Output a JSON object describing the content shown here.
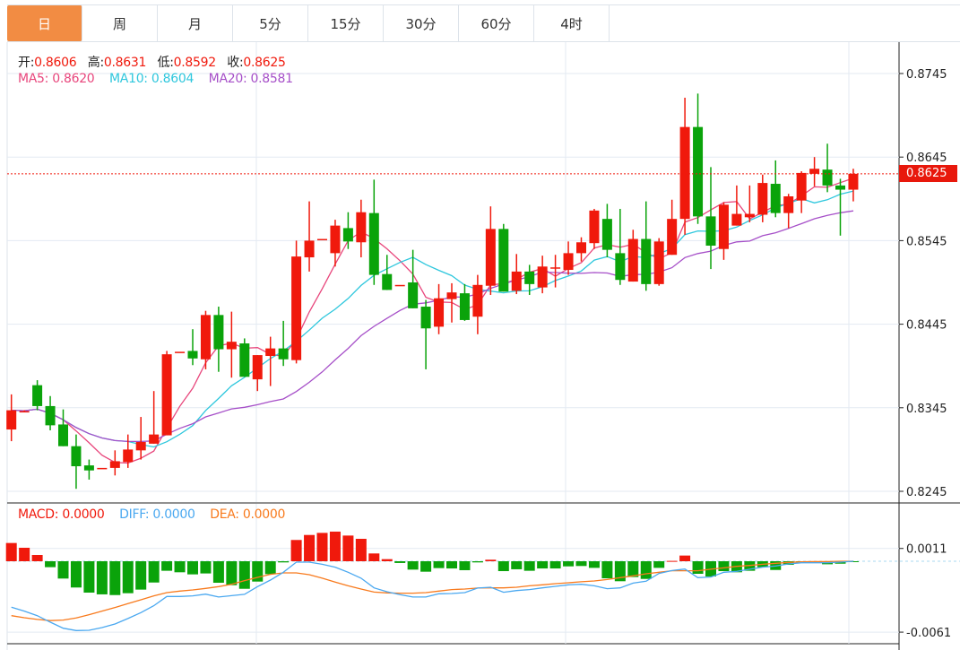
{
  "tabs": [
    {
      "label": "日",
      "active": true
    },
    {
      "label": "周"
    },
    {
      "label": "月"
    },
    {
      "label": "5分"
    },
    {
      "label": "15分"
    },
    {
      "label": "30分"
    },
    {
      "label": "60分"
    },
    {
      "label": "4时"
    }
  ],
  "ohlc_legend": {
    "open_label": "开:",
    "open": "0.8606",
    "high_label": "高:",
    "high": "0.8631",
    "low_label": "低:",
    "low": "0.8592",
    "close_label": "收:",
    "close": "0.8625"
  },
  "ma_legend": {
    "ma5": "MA5: 0.8620",
    "ma10": "MA10: 0.8604",
    "ma20": "MA20: 0.8581"
  },
  "macd_legend": {
    "macd": "MACD: 0.0000",
    "diff": "DIFF: 0.0000",
    "dea": "DEA: 0.0000"
  },
  "current_price": "0.8625",
  "colors": {
    "up": "#f0190c",
    "down": "#0aa30a",
    "ma5": "#e8467c",
    "ma10": "#2ec7dd",
    "ma20": "#a64fc8",
    "diff": "#4aa8f0",
    "dea": "#f87a1d",
    "accent": "#f28c43"
  },
  "chart_data": [
    {
      "type": "candlestick",
      "title": "",
      "y_ticks": [
        "0.8745",
        "0.8645",
        "0.8545",
        "0.8445",
        "0.8345",
        "0.8245"
      ],
      "ylim": [
        0.8245,
        0.8745
      ],
      "ohlc": [
        [
          0.8319,
          0.8361,
          0.8305,
          0.8342
        ],
        [
          0.8341,
          0.8342,
          0.834,
          0.8341
        ],
        [
          0.8372,
          0.8378,
          0.8342,
          0.8347
        ],
        [
          0.8347,
          0.8359,
          0.8318,
          0.8324
        ],
        [
          0.8325,
          0.8343,
          0.8299,
          0.8299
        ],
        [
          0.8299,
          0.8313,
          0.8248,
          0.8275
        ],
        [
          0.8276,
          0.8283,
          0.8259,
          0.827
        ],
        [
          0.8273,
          0.8273,
          0.8273,
          0.8273
        ],
        [
          0.8273,
          0.8294,
          0.8264,
          0.8281
        ],
        [
          0.828,
          0.8313,
          0.8273,
          0.8295
        ],
        [
          0.8294,
          0.8334,
          0.8283,
          0.8304
        ],
        [
          0.8302,
          0.8365,
          0.8302,
          0.8313
        ],
        [
          0.8312,
          0.8413,
          0.8312,
          0.8409
        ],
        [
          0.8412,
          0.8412,
          0.8412,
          0.8412
        ],
        [
          0.8413,
          0.8439,
          0.8396,
          0.8404
        ],
        [
          0.8403,
          0.8461,
          0.8391,
          0.8456
        ],
        [
          0.8456,
          0.8466,
          0.8388,
          0.8415
        ],
        [
          0.8415,
          0.846,
          0.8381,
          0.8424
        ],
        [
          0.8422,
          0.8428,
          0.8382,
          0.8382
        ],
        [
          0.8379,
          0.8408,
          0.8365,
          0.8408
        ],
        [
          0.8407,
          0.843,
          0.8371,
          0.8416
        ],
        [
          0.8416,
          0.8449,
          0.8395,
          0.8403
        ],
        [
          0.8402,
          0.8545,
          0.8398,
          0.8526
        ],
        [
          0.8525,
          0.8592,
          0.8508,
          0.8545
        ],
        [
          0.8547,
          0.8547,
          0.8547,
          0.8547
        ],
        [
          0.853,
          0.857,
          0.8514,
          0.8563
        ],
        [
          0.856,
          0.8579,
          0.8535,
          0.8544
        ],
        [
          0.8543,
          0.8594,
          0.8525,
          0.8579
        ],
        [
          0.8578,
          0.8618,
          0.8492,
          0.8504
        ],
        [
          0.8505,
          0.8528,
          0.8486,
          0.8486
        ],
        [
          0.8492,
          0.8492,
          0.8492,
          0.8492
        ],
        [
          0.8495,
          0.8534,
          0.8464,
          0.8464
        ],
        [
          0.8466,
          0.8474,
          0.8391,
          0.844
        ],
        [
          0.8442,
          0.8493,
          0.8433,
          0.8476
        ],
        [
          0.8475,
          0.8494,
          0.8447,
          0.8483
        ],
        [
          0.8482,
          0.8493,
          0.8449,
          0.845
        ],
        [
          0.8454,
          0.8504,
          0.8433,
          0.8492
        ],
        [
          0.8491,
          0.8586,
          0.848,
          0.8559
        ],
        [
          0.8559,
          0.8565,
          0.8484,
          0.8484
        ],
        [
          0.8485,
          0.8529,
          0.8481,
          0.8508
        ],
        [
          0.8508,
          0.8516,
          0.848,
          0.8493
        ],
        [
          0.8489,
          0.8527,
          0.8482,
          0.8514
        ],
        [
          0.8513,
          0.8528,
          0.8489,
          0.8513
        ],
        [
          0.851,
          0.8544,
          0.8504,
          0.853
        ],
        [
          0.853,
          0.8549,
          0.852,
          0.8543
        ],
        [
          0.8542,
          0.8583,
          0.8535,
          0.8581
        ],
        [
          0.8571,
          0.8589,
          0.8525,
          0.8534
        ],
        [
          0.853,
          0.8583,
          0.8492,
          0.8498
        ],
        [
          0.8496,
          0.8558,
          0.8496,
          0.8547
        ],
        [
          0.8547,
          0.8592,
          0.8485,
          0.8493
        ],
        [
          0.8493,
          0.8548,
          0.8491,
          0.8544
        ],
        [
          0.8528,
          0.8594,
          0.8528,
          0.8571
        ],
        [
          0.8571,
          0.8716,
          0.8552,
          0.8681
        ],
        [
          0.8681,
          0.8721,
          0.8565,
          0.8574
        ],
        [
          0.8574,
          0.8633,
          0.8511,
          0.8539
        ],
        [
          0.8535,
          0.8591,
          0.8522,
          0.8588
        ],
        [
          0.8563,
          0.8611,
          0.8563,
          0.8577
        ],
        [
          0.8573,
          0.8611,
          0.8567,
          0.8577
        ],
        [
          0.8576,
          0.8624,
          0.8567,
          0.8614
        ],
        [
          0.8613,
          0.8641,
          0.8573,
          0.8578
        ],
        [
          0.8578,
          0.8601,
          0.856,
          0.8598
        ],
        [
          0.8593,
          0.8628,
          0.8578,
          0.8626
        ],
        [
          0.8625,
          0.8645,
          0.861,
          0.8631
        ],
        [
          0.863,
          0.8661,
          0.8603,
          0.8611
        ],
        [
          0.8611,
          0.8619,
          0.8551,
          0.8606
        ],
        [
          0.8606,
          0.8631,
          0.8592,
          0.8625
        ]
      ],
      "ma_periods": [
        5,
        10,
        20
      ]
    },
    {
      "type": "macd",
      "y_ticks": [
        "0.0011",
        "-0.0061"
      ],
      "ylim": [
        -0.0061,
        0.0011
      ],
      "histogram": [
        0.00157,
        0.00116,
        0.00054,
        -0.00051,
        -0.00149,
        -0.00226,
        -0.0027,
        -0.00285,
        -0.00291,
        -0.00275,
        -0.00244,
        -0.00183,
        -0.00082,
        -0.00095,
        -0.00113,
        -0.00105,
        -0.00185,
        -0.00206,
        -0.00237,
        -0.00175,
        -0.00111,
        -0.0001,
        0.00183,
        0.00226,
        0.00244,
        0.00255,
        0.00221,
        0.00193,
        0.00067,
        0.00018,
        -0.00015,
        -0.00072,
        -0.0009,
        -0.00059,
        -0.00062,
        -0.00077,
        -0.0001,
        0.00013,
        -0.00085,
        -0.00069,
        -0.00082,
        -0.00062,
        -0.00062,
        -0.00044,
        -0.00041,
        -0.00057,
        -0.00147,
        -0.00172,
        -0.00136,
        -0.00152,
        -0.00057,
        3e-05,
        0.00049,
        -0.00108,
        -0.00131,
        -0.00085,
        -0.00095,
        -0.00082,
        -0.00051,
        -0.00075,
        -0.00031,
        -8e-05,
        -8e-05,
        -0.00026,
        -0.00021,
        -3e-05
      ],
      "diff": [
        -0.00396,
        -0.00429,
        -0.00468,
        -0.00524,
        -0.00576,
        -0.00596,
        -0.00594,
        -0.00571,
        -0.0054,
        -0.00493,
        -0.00442,
        -0.00383,
        -0.00303,
        -0.00303,
        -0.00298,
        -0.00283,
        -0.00308,
        -0.00296,
        -0.00285,
        -0.00218,
        -0.00162,
        -0.00095,
        -8e-05,
        -8e-05,
        -0.00026,
        -0.00051,
        -0.00095,
        -0.00146,
        -0.00229,
        -0.00262,
        -0.00288,
        -0.00308,
        -0.00308,
        -0.0028,
        -0.00278,
        -0.0027,
        -0.00231,
        -0.00224,
        -0.00267,
        -0.00252,
        -0.00244,
        -0.00229,
        -0.00216,
        -0.00203,
        -0.00198,
        -0.00211,
        -0.00236,
        -0.00229,
        -0.00188,
        -0.00172,
        -0.00105,
        -0.0008,
        -0.00067,
        -0.00141,
        -0.00136,
        -0.00095,
        -0.00087,
        -0.00069,
        -0.00051,
        -0.00041,
        -0.00023,
        -0.00013,
        -0.00013,
        -0.00013,
        -8e-05,
        0
      ],
      "dea": [
        -0.00468,
        -0.00486,
        -0.00501,
        -0.00511,
        -0.00506,
        -0.00488,
        -0.0046,
        -0.00429,
        -0.00398,
        -0.00365,
        -0.00332,
        -0.00298,
        -0.0027,
        -0.00257,
        -0.00247,
        -0.00234,
        -0.00218,
        -0.00198,
        -0.00167,
        -0.00139,
        -0.00113,
        -0.001,
        -0.001,
        -0.00116,
        -0.00146,
        -0.0018,
        -0.00211,
        -0.00239,
        -0.00265,
        -0.00272,
        -0.00275,
        -0.00275,
        -0.0027,
        -0.00257,
        -0.00244,
        -0.00239,
        -0.00231,
        -0.00229,
        -0.00229,
        -0.00224,
        -0.00211,
        -0.00203,
        -0.00193,
        -0.00185,
        -0.00177,
        -0.0017,
        -0.00157,
        -0.00141,
        -0.00126,
        -0.00108,
        -0.00095,
        -0.00082,
        -0.00082,
        -0.00082,
        -0.00069,
        -0.00057,
        -0.00044,
        -0.00036,
        -0.00026,
        -0.00018,
        -0.0001,
        -5e-05,
        -3e-05,
        -3e-05,
        0,
        0
      ]
    }
  ]
}
